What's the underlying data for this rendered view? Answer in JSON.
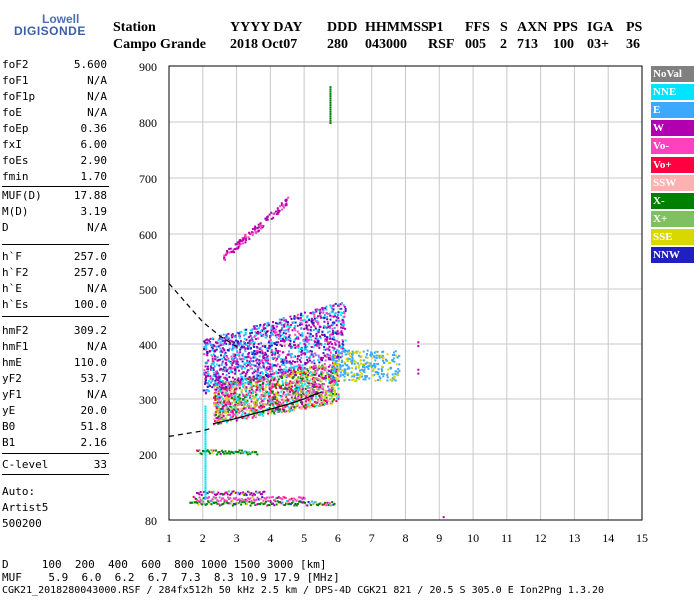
{
  "logo": {
    "line1": "Lowell",
    "line2": "DIGISONDE"
  },
  "header": {
    "labels": [
      "Station",
      "YYYY DAY",
      "DDD",
      "HHMMSS",
      "P1",
      "FFS",
      "S",
      "AXN",
      "PPS",
      "IGA",
      "PS"
    ],
    "values": [
      "Campo Grande",
      "2018 Oct07",
      "280",
      "043000",
      "RSF",
      "005",
      "2",
      "713",
      "100",
      "03+",
      "36"
    ]
  },
  "params": [
    {
      "k": "foF2",
      "v": "5.600"
    },
    {
      "k": "foF1",
      "v": "N/A"
    },
    {
      "k": "foF1p",
      "v": "N/A"
    },
    {
      "k": "foE",
      "v": "N/A"
    },
    {
      "k": "foEp",
      "v": "0.36"
    },
    {
      "k": "fxI",
      "v": "6.00"
    },
    {
      "k": "foEs",
      "v": "2.90"
    },
    {
      "k": "fmin",
      "v": "1.70"
    },
    {
      "k": "MUF(D)",
      "v": "17.88"
    },
    {
      "k": "M(D)",
      "v": "3.19"
    },
    {
      "k": "D",
      "v": "N/A"
    },
    {
      "k": "h`F",
      "v": "257.0"
    },
    {
      "k": "h`F2",
      "v": "257.0"
    },
    {
      "k": "h`E",
      "v": "N/A"
    },
    {
      "k": "h`Es",
      "v": "100.0"
    },
    {
      "k": "hmF2",
      "v": "309.2"
    },
    {
      "k": "hmF1",
      "v": "N/A"
    },
    {
      "k": "hmE",
      "v": "110.0"
    },
    {
      "k": "yF2",
      "v": "53.7"
    },
    {
      "k": "yF1",
      "v": "N/A"
    },
    {
      "k": "yE",
      "v": "20.0"
    },
    {
      "k": "B0",
      "v": "51.8"
    },
    {
      "k": "B1",
      "v": "2.16"
    },
    {
      "k": "C-level",
      "v": "33"
    }
  ],
  "autoscaling": {
    "line1": "Auto:",
    "line2": "Artist5",
    "line3": "500200"
  },
  "footer": {
    "d_row": "D     100  200  400  600  800 1000 1500 3000 [km]",
    "muf_row": "MUF    5.9  6.0  6.2  6.7  7.3  8.3 10.9 17.9 [MHz]",
    "file_row": "CGK21_2018280043000.RSF / 284fx512h 50 kHz 2.5 km / DPS-4D CGK21 821 / 20.5 S 305.0 E Ion2Png 1.3.20"
  },
  "chart_data": {
    "type": "scatter",
    "xlim": [
      1,
      15
    ],
    "ylim": [
      80,
      900
    ],
    "x_ticks": [
      1,
      2,
      3,
      4,
      5,
      6,
      7,
      8,
      9,
      10,
      11,
      12,
      13,
      14,
      15
    ],
    "y_ticks": [
      80,
      200,
      300,
      400,
      500,
      600,
      700,
      800,
      900
    ],
    "legend": [
      {
        "label": "NoVal",
        "color": "#808080"
      },
      {
        "label": "NNE",
        "color": "#00e5ff"
      },
      {
        "label": "E",
        "color": "#3da8ff"
      },
      {
        "label": "W",
        "color": "#b000b0"
      },
      {
        "label": "Vo-",
        "color": "#ff40c0"
      },
      {
        "label": "Vo+",
        "color": "#ff0040"
      },
      {
        "label": "SSW",
        "color": "#ffb0b0"
      },
      {
        "label": "X-",
        "color": "#008000"
      },
      {
        "label": "X+",
        "color": "#80c060"
      },
      {
        "label": "SSE",
        "color": "#d8d800"
      },
      {
        "label": "NNW",
        "color": "#2020c0"
      }
    ],
    "es_traces": [
      {
        "x0": 1.6,
        "x1": 5.9,
        "y": 112,
        "color": "#008000"
      },
      {
        "x0": 1.7,
        "x1": 5.0,
        "y": 120,
        "color": "#ff40c0"
      },
      {
        "x0": 1.8,
        "x1": 3.8,
        "y": 130,
        "color": "#b000b0"
      },
      {
        "x0": 1.8,
        "x1": 3.6,
        "y": 205,
        "color": "#008000"
      }
    ],
    "f_layer_band": {
      "x0": 2.3,
      "x1": 6.0,
      "y_low": 255,
      "y_high": 330
    },
    "upper_branch": {
      "x0": 2.0,
      "x1": 6.2,
      "y_low": 330,
      "y_high": 430
    },
    "second_hop": {
      "x0": 2.6,
      "x1": 4.5,
      "y_low": 560,
      "y_high": 660
    },
    "vertical_marks": [
      {
        "x": 5.75,
        "y0": 800,
        "y1": 865,
        "color": "#008000"
      },
      {
        "x": 2.05,
        "y0": 120,
        "y1": 290,
        "color": "#00e5ff"
      }
    ],
    "model_profile_solid": [
      [
        2.3,
        255
      ],
      [
        3.0,
        265
      ],
      [
        3.8,
        278
      ],
      [
        4.5,
        290
      ],
      [
        5.0,
        300
      ],
      [
        5.3,
        308
      ],
      [
        5.5,
        312
      ]
    ],
    "model_profile_dashed": [
      [
        1.0,
        510
      ],
      [
        1.5,
        475
      ],
      [
        2.0,
        440
      ],
      [
        2.5,
        415
      ],
      [
        3.0,
        395
      ]
    ],
    "model_profile_dashed_low": [
      [
        1.0,
        232
      ],
      [
        2.0,
        242
      ],
      [
        2.3,
        248
      ]
    ]
  }
}
